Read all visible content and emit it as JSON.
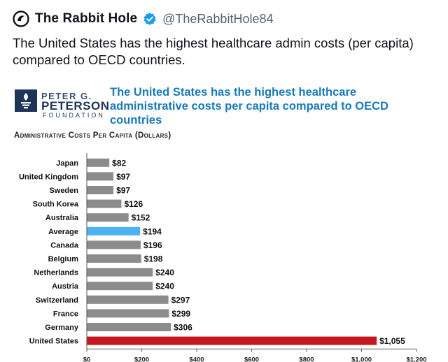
{
  "tweet": {
    "author_name": "The Rabbit Hole",
    "handle": "@TheRabbitHole84",
    "text": "The United States has the highest healthcare admin costs (per capita) compared to OECD countries.",
    "avatar_icon": "rabbit-hole-icon",
    "verified_icon": "verified-badge-icon",
    "verified_color": "#1d9bf0"
  },
  "logo": {
    "line1": "PETER G.",
    "line2": "PETERSON",
    "line3": "FOUNDATION",
    "icon": "flame-torch-icon"
  },
  "chart_data": {
    "type": "bar",
    "orientation": "horizontal",
    "title": "The United States has the highest healthcare administrative costs per capita compared to OECD countries",
    "subtitle": "Administrative Costs Per Capita (Dollars)",
    "categories": [
      "Japan",
      "United Kingdom",
      "Sweden",
      "South Korea",
      "Australia",
      "Average",
      "Canada",
      "Belgium",
      "Netherlands",
      "Austria",
      "Switzerland",
      "France",
      "Germany",
      "United States"
    ],
    "values": [
      82,
      97,
      97,
      126,
      152,
      194,
      196,
      198,
      240,
      240,
      297,
      299,
      306,
      1055
    ],
    "value_labels": [
      "$82",
      "$97",
      "$97",
      "$126",
      "$152",
      "$194",
      "$196",
      "$198",
      "$240",
      "$240",
      "$297",
      "$299",
      "$306",
      "$1,055"
    ],
    "bar_colors": [
      "#8c8c8c",
      "#8c8c8c",
      "#8c8c8c",
      "#8c8c8c",
      "#8c8c8c",
      "#4db3f0",
      "#8c8c8c",
      "#8c8c8c",
      "#8c8c8c",
      "#8c8c8c",
      "#8c8c8c",
      "#8c8c8c",
      "#8c8c8c",
      "#c4161c"
    ],
    "xlim": [
      0,
      1200
    ],
    "x_ticks": [
      0,
      200,
      400,
      600,
      800,
      1000,
      1200
    ],
    "x_tick_labels": [
      "$0",
      "$200",
      "$400",
      "$600",
      "$800",
      "$1,000",
      "$1,200"
    ],
    "grid": false,
    "legend": "none"
  }
}
